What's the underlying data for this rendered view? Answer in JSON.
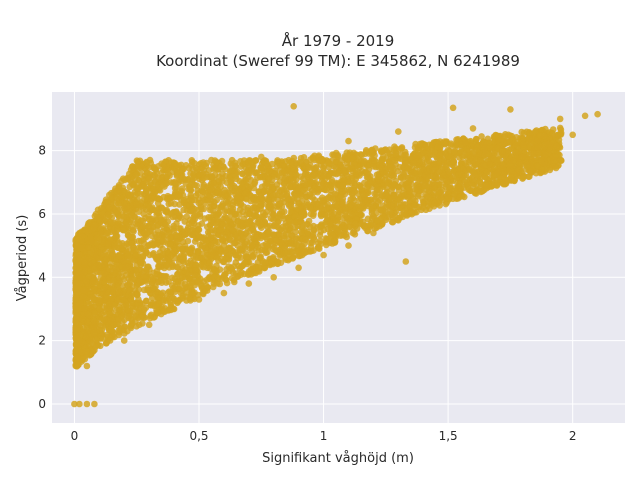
{
  "chart_data": {
    "type": "scatter",
    "title": "År 1979 - 2019",
    "subtitle": "Koordinat (Sweref 99 TM): E 345862, N 6241989",
    "xlabel": "Signifikant våghöjd (m)",
    "ylabel": "Vågperiod (s)",
    "xlim": [
      -0.09,
      2.21
    ],
    "ylim": [
      -0.6,
      9.85
    ],
    "x_ticks": [
      0,
      0.5,
      1,
      1.5,
      2
    ],
    "x_tick_labels": [
      "0",
      "0,5",
      "1",
      "1,5",
      "2"
    ],
    "y_ticks": [
      0,
      2,
      4,
      6,
      8
    ],
    "y_tick_labels": [
      "0",
      "2",
      "4",
      "6",
      "8"
    ],
    "grid": true,
    "background_color": "#e9e9f1",
    "grid_color": "#ffffff",
    "marker_color": "#d4a420",
    "series": [
      {
        "points_sample": [
          [
            0.0,
            0.0
          ],
          [
            0.02,
            0.0
          ],
          [
            0.05,
            0.0
          ],
          [
            0.08,
            0.0
          ],
          [
            0.01,
            1.3
          ],
          [
            0.02,
            2.0
          ],
          [
            0.03,
            4.0
          ],
          [
            0.04,
            5.5
          ],
          [
            0.05,
            1.2
          ],
          [
            0.1,
            3.0
          ],
          [
            0.1,
            5.8
          ],
          [
            0.15,
            6.5
          ],
          [
            0.2,
            2.0
          ],
          [
            0.2,
            4.5
          ],
          [
            0.25,
            6.8
          ],
          [
            0.3,
            2.5
          ],
          [
            0.3,
            5.0
          ],
          [
            0.35,
            7.3
          ],
          [
            0.4,
            3.0
          ],
          [
            0.4,
            7.6
          ],
          [
            0.5,
            3.3
          ],
          [
            0.5,
            5.5
          ],
          [
            0.55,
            7.7
          ],
          [
            0.6,
            3.5
          ],
          [
            0.7,
            3.8
          ],
          [
            0.7,
            6.0
          ],
          [
            0.75,
            7.8
          ],
          [
            0.8,
            4.0
          ],
          [
            0.9,
            4.3
          ],
          [
            0.9,
            6.8
          ],
          [
            0.88,
            9.4
          ],
          [
            1.0,
            4.7
          ],
          [
            1.0,
            7.2
          ],
          [
            1.1,
            5.0
          ],
          [
            1.1,
            8.3
          ],
          [
            1.2,
            5.4
          ],
          [
            1.2,
            7.5
          ],
          [
            1.3,
            5.8
          ],
          [
            1.3,
            8.6
          ],
          [
            1.33,
            4.5
          ],
          [
            1.4,
            6.2
          ],
          [
            1.4,
            8.2
          ],
          [
            1.52,
            9.35
          ],
          [
            1.5,
            6.5
          ],
          [
            1.6,
            6.9
          ],
          [
            1.6,
            8.7
          ],
          [
            1.7,
            7.3
          ],
          [
            1.75,
            9.3
          ],
          [
            1.8,
            7.8
          ],
          [
            1.85,
            8.6
          ],
          [
            1.9,
            8.2
          ],
          [
            1.95,
            9.0
          ],
          [
            2.0,
            8.5
          ],
          [
            2.05,
            9.1
          ],
          [
            2.1,
            9.15
          ]
        ]
      }
    ]
  }
}
